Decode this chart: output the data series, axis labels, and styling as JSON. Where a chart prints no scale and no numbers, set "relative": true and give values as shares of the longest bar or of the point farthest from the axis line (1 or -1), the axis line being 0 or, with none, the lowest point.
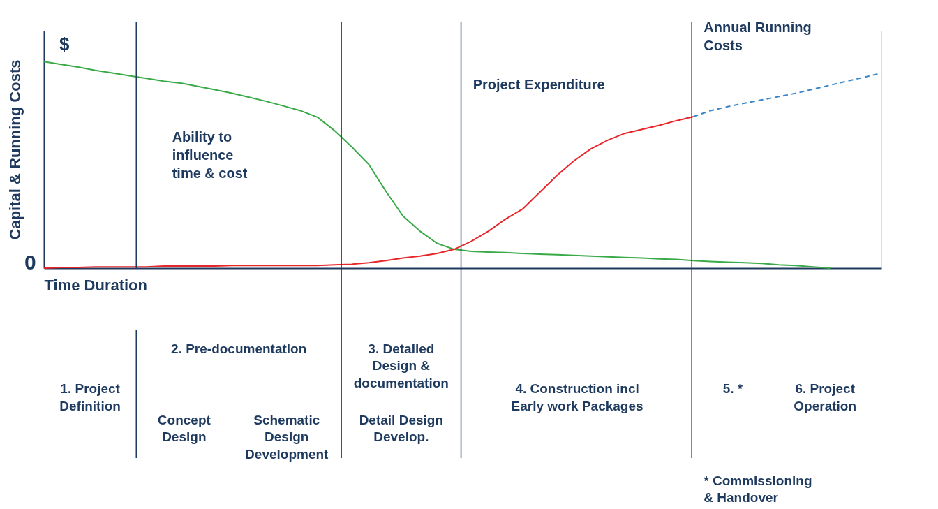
{
  "chart_data": {
    "type": "line",
    "relative": true,
    "xlabel": "Time Duration",
    "ylabel": "Capital & Running Costs",
    "categories": [
      null,
      null,
      null,
      null,
      null,
      null,
      null,
      null,
      null,
      null,
      null,
      null,
      null,
      null,
      null,
      null,
      null,
      null,
      null,
      null,
      null,
      null,
      null,
      null,
      null,
      null,
      null,
      null,
      null,
      null,
      null,
      null,
      null,
      null,
      null,
      null,
      null,
      null,
      null,
      null,
      null,
      null,
      null,
      null,
      null,
      null,
      null,
      null,
      null,
      null
    ],
    "series": [
      {
        "color": "#3aaa48",
        "line_style": "solid",
        "values": [
          1.0,
          0.987,
          0.974,
          0.958,
          0.945,
          0.932,
          0.919,
          0.906,
          0.896,
          0.88,
          0.864,
          0.847,
          0.828,
          0.808,
          0.786,
          0.763,
          0.731,
          0.666,
          0.588,
          0.503,
          0.373,
          0.253,
          0.179,
          0.12,
          0.091,
          0.081,
          0.078,
          0.075,
          0.071,
          0.068,
          0.065,
          0.062,
          0.058,
          0.055,
          0.052,
          0.049,
          0.045,
          0.042,
          0.036,
          0.032,
          0.029,
          0.026,
          0.023,
          0.016,
          0.013,
          0.006,
          0,
          null,
          null,
          null
        ]
      },
      {
        "color": "#e8262a",
        "line_style": "solid",
        "values": [
          0,
          0.003,
          0.003,
          0.006,
          0.006,
          0.006,
          0.006,
          0.01,
          0.01,
          0.01,
          0.01,
          0.013,
          0.013,
          0.013,
          0.013,
          0.013,
          0.013,
          0.016,
          0.019,
          0.026,
          0.036,
          0.049,
          0.058,
          0.071,
          0.091,
          0.13,
          0.179,
          0.237,
          0.286,
          0.367,
          0.448,
          0.519,
          0.578,
          0.62,
          0.653,
          0.672,
          0.692,
          0.714,
          0.734,
          null,
          null,
          null,
          null,
          null,
          null,
          null,
          null,
          null,
          null,
          null
        ]
      },
      {
        "color": "#3a86c8",
        "line_style": "dashed",
        "values": [
          null,
          null,
          null,
          null,
          null,
          null,
          null,
          null,
          null,
          null,
          null,
          null,
          null,
          null,
          null,
          null,
          null,
          null,
          null,
          null,
          null,
          null,
          null,
          null,
          null,
          null,
          null,
          null,
          null,
          null,
          null,
          null,
          null,
          null,
          null,
          null,
          null,
          null,
          0.734,
          0.763,
          0.782,
          0.799,
          0.815,
          0.831,
          0.847,
          0.867,
          0.886,
          0.906,
          0.925,
          0.945
        ]
      }
    ],
    "annotations": [
      "$",
      "0",
      "Ability to influence time & cost",
      "Project Expenditure",
      "Annual Running Costs",
      "1. Project Definition",
      "2. Pre-documentation",
      "Concept Design",
      "Schematic Design Development",
      "3. Detailed Design & documentation",
      "Detail Design Develop.",
      "4. Construction incl Early work Packages",
      "5. *",
      "6. Project Operation",
      "* Commissioning & Handover"
    ],
    "grid": false
  }
}
